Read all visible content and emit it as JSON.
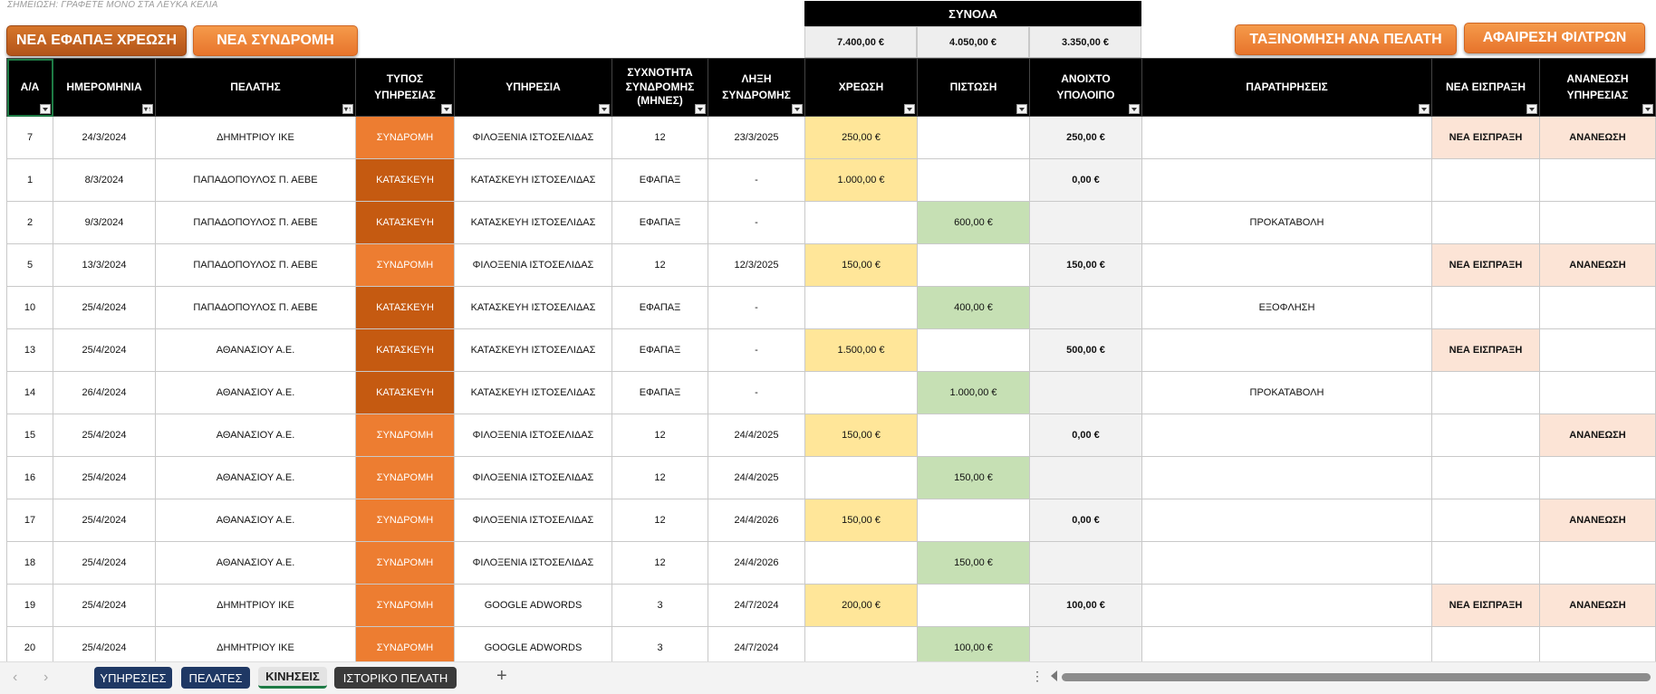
{
  "note": "ΣΗΜΕΙΩΣΗ: ΓΡΑΦΕΤΕ ΜΟΝΟ ΣΤΑ ΛΕΥΚΑ ΚΕΛΙΑ",
  "buttons": {
    "new_one_time_charge": "ΝΕΑ ΕΦΑΠΑΞ ΧΡΕΩΣΗ",
    "new_subscription": "ΝΕΑ ΣΥΝΔΡΟΜΗ",
    "sort_by_client": "ΤΑΞΙΝΟΜΗΣΗ ΑΝΑ ΠΕΛΑΤΗ",
    "remove_filters": "ΑΦΑΙΡΕΣΗ ΦΙΛΤΡΩΝ"
  },
  "totals": {
    "title": "ΣΥΝΟΛΑ",
    "debit": "7.400,00 €",
    "credit": "4.050,00 €",
    "open_balance": "3.350,00 €"
  },
  "headers": {
    "aa": "Α/Α",
    "date": "ΗΜΕΡΟΜΗΝΙΑ",
    "client": "ΠΕΛΑΤΗΣ",
    "service_type_l1": "ΤΥΠΟΣ",
    "service_type_l2": "ΥΠΗΡΕΣΙΑΣ",
    "service": "ΥΠΗΡΕΣΙΑ",
    "frequency_l1": "ΣΥΧΝΟΤΗΤΑ",
    "frequency_l2": "ΣΥΝΔΡΟΜΗΣ",
    "frequency_l3": "(ΜΗΝΕΣ)",
    "expiry_l1": "ΛΗΞΗ",
    "expiry_l2": "ΣΥΝΔΡΟΜΗΣ",
    "debit": "ΧΡΕΩΣΗ",
    "credit": "ΠΙΣΤΩΣΗ",
    "balance_l1": "ΑΝΟΙΧΤΟ",
    "balance_l2": "ΥΠΟΛΟΙΠΟ",
    "remarks": "ΠΑΡΑΤΗΡΗΣΕΙΣ",
    "new_receipt": "ΝΕΑ ΕΙΣΠΡΑΞΗ",
    "renewal_l1": "ΑΝΑΝΕΩΣΗ",
    "renewal_l2": "ΥΠΗΡΕΣΙΑΣ"
  },
  "rows": [
    {
      "aa": "7",
      "date": "24/3/2024",
      "client": "ΔΗΜΗΤΡΙΟΥ ΙΚΕ",
      "type": "ΣΥΝΔΡΟΜΗ",
      "service": "ΦΙΛΟΞΕΝΙΑ ΙΣΤΟΣΕΛΙΔΑΣ",
      "freq": "12",
      "expiry": "23/3/2025",
      "debit": "250,00 €",
      "credit": "",
      "balance": "250,00 €",
      "remarks": "",
      "receipt": "ΝΕΑ ΕΙΣΠΡΑΞΗ",
      "renewal": "ΑΝΑΝΕΩΣΗ"
    },
    {
      "aa": "1",
      "date": "8/3/2024",
      "client": "ΠΑΠΑΔΟΠΟΥΛΟΣ Π. ΑΕΒΕ",
      "type": "ΚΑΤΑΣΚΕΥΗ",
      "service": "ΚΑΤΑΣΚΕΥΗ ΙΣΤΟΣΕΛΙΔΑΣ",
      "freq": "ΕΦΑΠΑΞ",
      "expiry": "-",
      "debit": "1.000,00 €",
      "credit": "",
      "balance": "0,00 €",
      "remarks": "",
      "receipt": "",
      "renewal": ""
    },
    {
      "aa": "2",
      "date": "9/3/2024",
      "client": "ΠΑΠΑΔΟΠΟΥΛΟΣ Π. ΑΕΒΕ",
      "type": "ΚΑΤΑΣΚΕΥΗ",
      "service": "ΚΑΤΑΣΚΕΥΗ ΙΣΤΟΣΕΛΙΔΑΣ",
      "freq": "ΕΦΑΠΑΞ",
      "expiry": "-",
      "debit": "",
      "credit": "600,00 €",
      "balance": "",
      "remarks": "ΠΡΟΚΑΤΑΒΟΛΗ",
      "receipt": "",
      "renewal": ""
    },
    {
      "aa": "5",
      "date": "13/3/2024",
      "client": "ΠΑΠΑΔΟΠΟΥΛΟΣ Π. ΑΕΒΕ",
      "type": "ΣΥΝΔΡΟΜΗ",
      "service": "ΦΙΛΟΞΕΝΙΑ ΙΣΤΟΣΕΛΙΔΑΣ",
      "freq": "12",
      "expiry": "12/3/2025",
      "debit": "150,00 €",
      "credit": "",
      "balance": "150,00 €",
      "remarks": "",
      "receipt": "ΝΕΑ ΕΙΣΠΡΑΞΗ",
      "renewal": "ΑΝΑΝΕΩΣΗ"
    },
    {
      "aa": "10",
      "date": "25/4/2024",
      "client": "ΠΑΠΑΔΟΠΟΥΛΟΣ Π. ΑΕΒΕ",
      "type": "ΚΑΤΑΣΚΕΥΗ",
      "service": "ΚΑΤΑΣΚΕΥΗ ΙΣΤΟΣΕΛΙΔΑΣ",
      "freq": "ΕΦΑΠΑΞ",
      "expiry": "-",
      "debit": "",
      "credit": "400,00 €",
      "balance": "",
      "remarks": "ΕΞΟΦΛΗΣΗ",
      "receipt": "",
      "renewal": ""
    },
    {
      "aa": "13",
      "date": "25/4/2024",
      "client": "ΑΘΑΝΑΣΙΟΥ Α.Ε.",
      "type": "ΚΑΤΑΣΚΕΥΗ",
      "service": "ΚΑΤΑΣΚΕΥΗ ΙΣΤΟΣΕΛΙΔΑΣ",
      "freq": "ΕΦΑΠΑΞ",
      "expiry": "-",
      "debit": "1.500,00 €",
      "credit": "",
      "balance": "500,00 €",
      "remarks": "",
      "receipt": "ΝΕΑ ΕΙΣΠΡΑΞΗ",
      "renewal": ""
    },
    {
      "aa": "14",
      "date": "26/4/2024",
      "client": "ΑΘΑΝΑΣΙΟΥ Α.Ε.",
      "type": "ΚΑΤΑΣΚΕΥΗ",
      "service": "ΚΑΤΑΣΚΕΥΗ ΙΣΤΟΣΕΛΙΔΑΣ",
      "freq": "ΕΦΑΠΑΞ",
      "expiry": "-",
      "debit": "",
      "credit": "1.000,00 €",
      "balance": "",
      "remarks": "ΠΡΟΚΑΤΑΒΟΛΗ",
      "receipt": "",
      "renewal": ""
    },
    {
      "aa": "15",
      "date": "25/4/2024",
      "client": "ΑΘΑΝΑΣΙΟΥ Α.Ε.",
      "type": "ΣΥΝΔΡΟΜΗ",
      "service": "ΦΙΛΟΞΕΝΙΑ ΙΣΤΟΣΕΛΙΔΑΣ",
      "freq": "12",
      "expiry": "24/4/2025",
      "debit": "150,00 €",
      "credit": "",
      "balance": "0,00 €",
      "remarks": "",
      "receipt": "",
      "renewal": "ΑΝΑΝΕΩΣΗ"
    },
    {
      "aa": "16",
      "date": "25/4/2024",
      "client": "ΑΘΑΝΑΣΙΟΥ Α.Ε.",
      "type": "ΣΥΝΔΡΟΜΗ",
      "service": "ΦΙΛΟΞΕΝΙΑ ΙΣΤΟΣΕΛΙΔΑΣ",
      "freq": "12",
      "expiry": "24/4/2025",
      "debit": "",
      "credit": "150,00 €",
      "balance": "",
      "remarks": "",
      "receipt": "",
      "renewal": ""
    },
    {
      "aa": "17",
      "date": "25/4/2024",
      "client": "ΑΘΑΝΑΣΙΟΥ Α.Ε.",
      "type": "ΣΥΝΔΡΟΜΗ",
      "service": "ΦΙΛΟΞΕΝΙΑ ΙΣΤΟΣΕΛΙΔΑΣ",
      "freq": "12",
      "expiry": "24/4/2026",
      "debit": "150,00 €",
      "credit": "",
      "balance": "0,00 €",
      "remarks": "",
      "receipt": "",
      "renewal": "ΑΝΑΝΕΩΣΗ"
    },
    {
      "aa": "18",
      "date": "25/4/2024",
      "client": "ΑΘΑΝΑΣΙΟΥ Α.Ε.",
      "type": "ΣΥΝΔΡΟΜΗ",
      "service": "ΦΙΛΟΞΕΝΙΑ ΙΣΤΟΣΕΛΙΔΑΣ",
      "freq": "12",
      "expiry": "24/4/2026",
      "debit": "",
      "credit": "150,00 €",
      "balance": "",
      "remarks": "",
      "receipt": "",
      "renewal": ""
    },
    {
      "aa": "19",
      "date": "25/4/2024",
      "client": "ΔΗΜΗΤΡΙΟΥ ΙΚΕ",
      "type": "ΣΥΝΔΡΟΜΗ",
      "service": "GOOGLE ADWORDS",
      "freq": "3",
      "expiry": "24/7/2024",
      "debit": "200,00 €",
      "credit": "",
      "balance": "100,00 €",
      "remarks": "",
      "receipt": "ΝΕΑ ΕΙΣΠΡΑΞΗ",
      "renewal": "ΑΝΑΝΕΩΣΗ"
    },
    {
      "aa": "20",
      "date": "25/4/2024",
      "client": "ΔΗΜΗΤΡΙΟΥ ΙΚΕ",
      "type": "ΣΥΝΔΡΟΜΗ",
      "service": "GOOGLE ADWORDS",
      "freq": "3",
      "expiry": "24/7/2024",
      "debit": "",
      "credit": "100,00 €",
      "balance": "",
      "remarks": "",
      "receipt": "",
      "renewal": ""
    }
  ],
  "sheet_tabs": [
    "ΥΠΗΡΕΣΙΕΣ",
    "ΠΕΛΑΤΕΣ",
    "ΚΙΝΗΣΕΙΣ",
    "ΙΣΤΟΡΙΚΟ ΠΕΛΑΤΗ"
  ],
  "active_tab": "ΚΙΝΗΣΕΙΣ",
  "icons": {
    "filter": "filter-dropdown-icon",
    "sort": "sort-filter-icon",
    "prev": "chevron-left-icon",
    "next": "chevron-right-icon",
    "add": "plus-icon",
    "more": "vertical-dots-icon"
  },
  "colors": {
    "subscription": "#ed7d31",
    "construction": "#c55a11",
    "debit": "#ffe699",
    "credit": "#c6e0b4",
    "action": "#fce4d6",
    "tab_blue": "#1f3864"
  }
}
